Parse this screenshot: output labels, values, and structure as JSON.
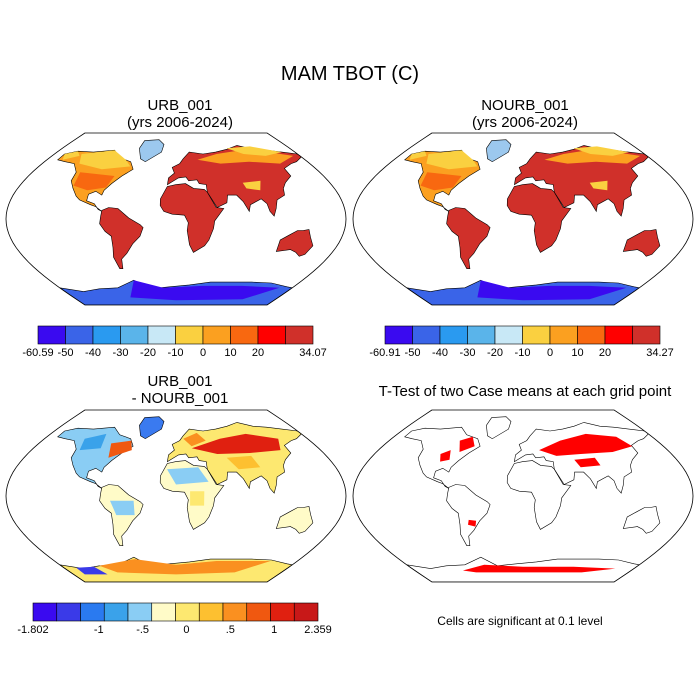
{
  "figure": {
    "title": "MAM TBOT (C)",
    "note": "Cells are significant at 0.1 level"
  },
  "chart_data": [
    {
      "type": "heatmap",
      "id": "urb",
      "title": "URB_001",
      "subtitle": "(yrs 2006-2024)",
      "projection": "robinson",
      "colorbar": {
        "colors": [
          "#3a0af0",
          "#3a64e8",
          "#2a9af0",
          "#5ab4ea",
          "#c8e8f6",
          "#fad040",
          "#fba020",
          "#f86810",
          "#ff0000",
          "#d0302a"
        ],
        "tick_labels": [
          "-60.59",
          "-50",
          "-40",
          "-30",
          "-20",
          "-10",
          "0",
          "10",
          "20",
          "34.07"
        ],
        "min": -60.59,
        "max": 34.07
      }
    },
    {
      "type": "heatmap",
      "id": "nourb",
      "title": "NOURB_001",
      "subtitle": "(yrs 2006-2024)",
      "projection": "robinson",
      "colorbar": {
        "colors": [
          "#3a0af0",
          "#3a64e8",
          "#2a9af0",
          "#5ab4ea",
          "#c8e8f6",
          "#fad040",
          "#fba020",
          "#f86810",
          "#ff0000",
          "#d0302a"
        ],
        "tick_labels": [
          "-60.91",
          "-50",
          "-40",
          "-30",
          "-20",
          "-10",
          "0",
          "10",
          "20",
          "34.27"
        ],
        "min": -60.91,
        "max": 34.27
      }
    },
    {
      "type": "heatmap",
      "id": "diff",
      "title": "URB_001",
      "subtitle": "- NOURB_001",
      "projection": "robinson",
      "colorbar": {
        "colors": [
          "#3a0af0",
          "#3a3ae8",
          "#2a7af0",
          "#3aa2ea",
          "#8acdf4",
          "#fffbc8",
          "#fde870",
          "#fdc030",
          "#fa9020",
          "#f05810",
          "#e02010",
          "#c81818"
        ],
        "tick_labels": [
          "-1.802",
          "-1",
          "-.5",
          "0",
          ".5",
          "1",
          "2.359"
        ],
        "min": -1.802,
        "max": 2.359
      }
    },
    {
      "type": "heatmap",
      "id": "ttest",
      "title": "T-Test of two Case means at each grid point",
      "projection": "robinson",
      "significance_color": "#ff0000"
    }
  ]
}
